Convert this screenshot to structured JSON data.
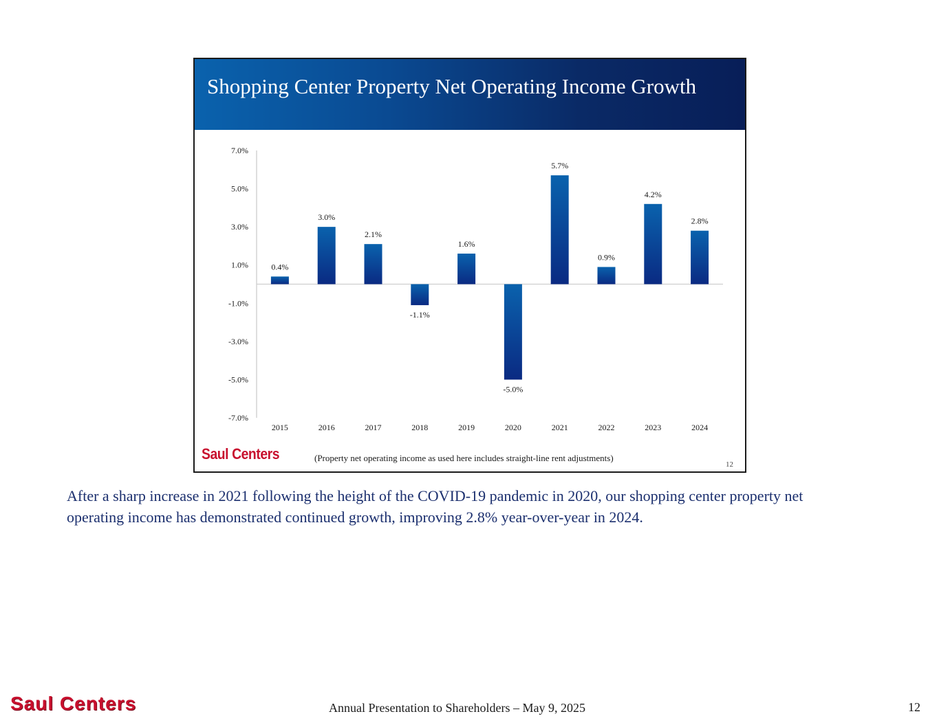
{
  "slide": {
    "title": "Shopping Center Property Net Operating Income Growth",
    "logo": "Saul Centers",
    "note": "(Property net operating income as used here includes straight-line rent adjustments)",
    "page_number": "12"
  },
  "chart_data": {
    "type": "bar",
    "title": "Shopping Center Property Net Operating Income Growth",
    "xlabel": "",
    "ylabel": "",
    "categories": [
      "2015",
      "2016",
      "2017",
      "2018",
      "2019",
      "2020",
      "2021",
      "2022",
      "2023",
      "2024"
    ],
    "values": [
      0.4,
      3.0,
      2.1,
      -1.1,
      1.6,
      -5.0,
      5.7,
      0.9,
      4.2,
      2.8
    ],
    "data_labels": [
      "0.4%",
      "3.0%",
      "2.1%",
      "-1.1%",
      "1.6%",
      "-5.0%",
      "5.7%",
      "0.9%",
      "4.2%",
      "2.8%"
    ],
    "y_ticks": [
      7.0,
      5.0,
      3.0,
      1.0,
      -1.0,
      -3.0,
      -5.0,
      -7.0
    ],
    "y_tick_labels": [
      "7.0%",
      "5.0%",
      "3.0%",
      "1.0%",
      "-1.0%",
      "-3.0%",
      "-5.0%",
      "-7.0%"
    ],
    "ylim": [
      -7.0,
      7.0
    ],
    "grid": false,
    "legend": "none",
    "bar_color_top": "#0a62ad",
    "bar_color_bottom": "#0a2a82"
  },
  "caption": "After a sharp increase in 2021 following the height of the COVID-19 pandemic in 2020, our shopping center property net operating income has demonstrated continued growth, improving 2.8% year-over-year in 2024.",
  "footer": {
    "logo": "Saul Centers",
    "text": "Annual Presentation to Shareholders – May 9, 2025",
    "page_number": "12"
  },
  "colors": {
    "header_dark": "#081e58",
    "header_light": "#0a62ad",
    "brand_red": "#c8102e",
    "caption_blue": "#1b2f6e"
  }
}
